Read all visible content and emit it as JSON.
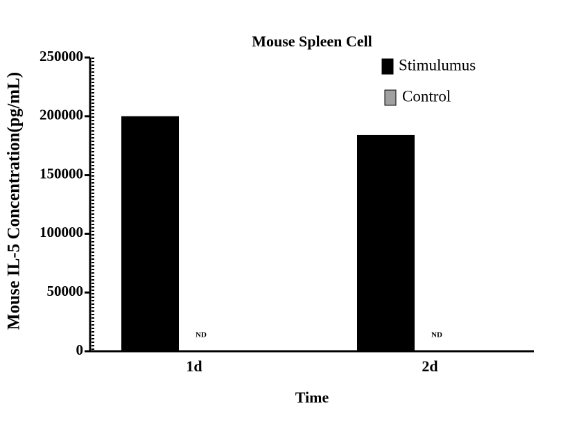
{
  "chart_data": {
    "type": "bar",
    "title": "Mouse Spleen Cell",
    "x_label": "Time",
    "y_label": "Mouse IL-5 Concentration(pg/mL)",
    "categories": [
      "1d",
      "2d"
    ],
    "series": [
      {
        "name": "Stimulumus",
        "color": "#000000",
        "values": [
          200000,
          184000
        ]
      },
      {
        "name": "Control",
        "color": "#a0a0a0",
        "values": [
          null,
          null
        ],
        "value_labels": [
          "ND",
          "ND"
        ]
      }
    ],
    "ylim": [
      0,
      250000
    ],
    "yticks": [
      0,
      50000,
      100000,
      150000,
      200000,
      250000
    ],
    "legend": "top-right",
    "grid": false
  }
}
